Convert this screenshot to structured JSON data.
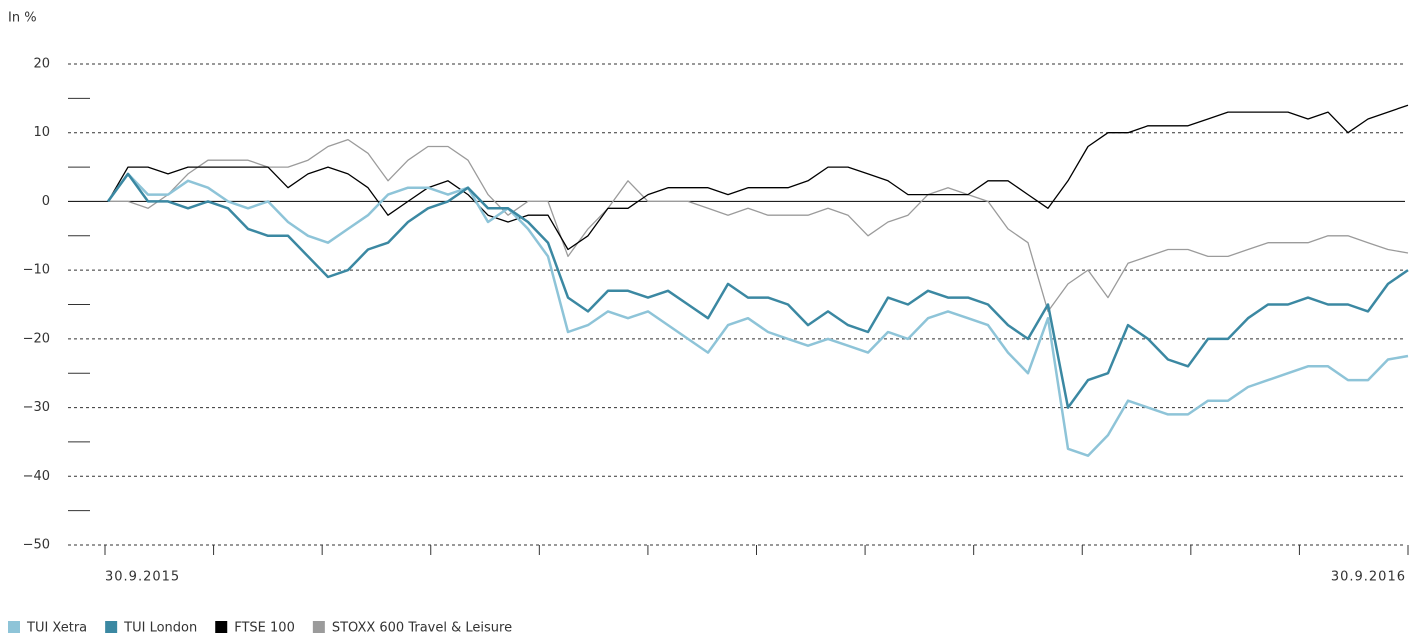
{
  "chart_data": {
    "type": "line",
    "y_label": "In %",
    "ylim": [
      -50,
      20
    ],
    "yticks": [
      {
        "value": 20,
        "label": "20"
      },
      {
        "value": 10,
        "label": "10"
      },
      0,
      {
        "value": -10,
        "label": "−10"
      },
      {
        "value": -20,
        "label": "−20"
      },
      {
        "value": -30,
        "label": "−30"
      },
      {
        "value": -40,
        "label": "−40"
      },
      {
        "value": -50,
        "label": "−50"
      }
    ],
    "yminorticks": [
      15,
      5,
      -5,
      -15,
      -25,
      -35,
      -45
    ],
    "xticks": [
      "30.9.2015",
      "30.9.2016"
    ],
    "grid": true,
    "legend": "bottom-left",
    "series": [
      {
        "name": "TUI Xetra",
        "color": "#8ec4d8",
        "values": [
          0,
          4,
          1,
          1,
          3,
          2,
          0,
          -1,
          0,
          -3,
          -5,
          -6,
          -4,
          -2,
          1,
          2,
          2,
          1,
          2,
          -3,
          -1,
          -4,
          -8,
          -19,
          -18,
          -16,
          -17,
          -16,
          -18,
          -20,
          -22,
          -18,
          -17,
          -19,
          -20,
          -21,
          -20,
          -21,
          -22,
          -19,
          -20,
          -17,
          -16,
          -17,
          -18,
          -22,
          -25,
          -17,
          -36,
          -37,
          -34,
          -29,
          -30,
          -31,
          -31,
          -29,
          -29,
          -27,
          -26,
          -25,
          -24,
          -24,
          -26,
          -26,
          -23,
          -22.5
        ]
      },
      {
        "name": "TUI London",
        "color": "#3b88a2",
        "values": [
          0,
          4,
          0,
          0,
          -1,
          0,
          -1,
          -4,
          -5,
          -5,
          -8,
          -11,
          -10,
          -7,
          -6,
          -3,
          -1,
          0,
          2,
          -1,
          -1,
          -3,
          -6,
          -14,
          -16,
          -13,
          -13,
          -14,
          -13,
          -15,
          -17,
          -12,
          -14,
          -14,
          -15,
          -18,
          -16,
          -18,
          -19,
          -14,
          -15,
          -13,
          -14,
          -14,
          -15,
          -18,
          -20,
          -15,
          -30,
          -26,
          -25,
          -18,
          -20,
          -23,
          -24,
          -20,
          -20,
          -17,
          -15,
          -15,
          -14,
          -15,
          -15,
          -16,
          -12,
          -10
        ]
      },
      {
        "name": "FTSE 100",
        "color": "#000000",
        "values": [
          0,
          5,
          5,
          4,
          5,
          5,
          5,
          5,
          5,
          2,
          4,
          5,
          4,
          2,
          -2,
          0,
          2,
          3,
          1,
          -2,
          -3,
          -2,
          -2,
          -7,
          -5,
          -1,
          -1,
          1,
          2,
          2,
          2,
          1,
          2,
          2,
          2,
          3,
          5,
          5,
          4,
          3,
          1,
          1,
          1,
          1,
          3,
          3,
          1,
          -1,
          3,
          8,
          10,
          10,
          11,
          11,
          11,
          12,
          13,
          13,
          13,
          13,
          12,
          13,
          10,
          12,
          13,
          14
        ]
      },
      {
        "name": "STOXX 600 Travel & Leisure",
        "color": "#9b9b9b",
        "values": [
          0,
          0,
          -1,
          1,
          4,
          6,
          6,
          6,
          5,
          5,
          6,
          8,
          9,
          7,
          3,
          6,
          8,
          8,
          6,
          1,
          -2,
          0,
          0,
          -8,
          -4,
          -1,
          3,
          0,
          0,
          0,
          -1,
          -2,
          -1,
          -2,
          -2,
          -2,
          -1,
          -2,
          -5,
          -3,
          -2,
          1,
          2,
          1,
          0,
          -4,
          -6,
          -16,
          -12,
          -10,
          -14,
          -9,
          -8,
          -7,
          -7,
          -8,
          -8,
          -7,
          -6,
          -6,
          -6,
          -5,
          -5,
          -6,
          -7,
          -7.5
        ]
      }
    ]
  }
}
